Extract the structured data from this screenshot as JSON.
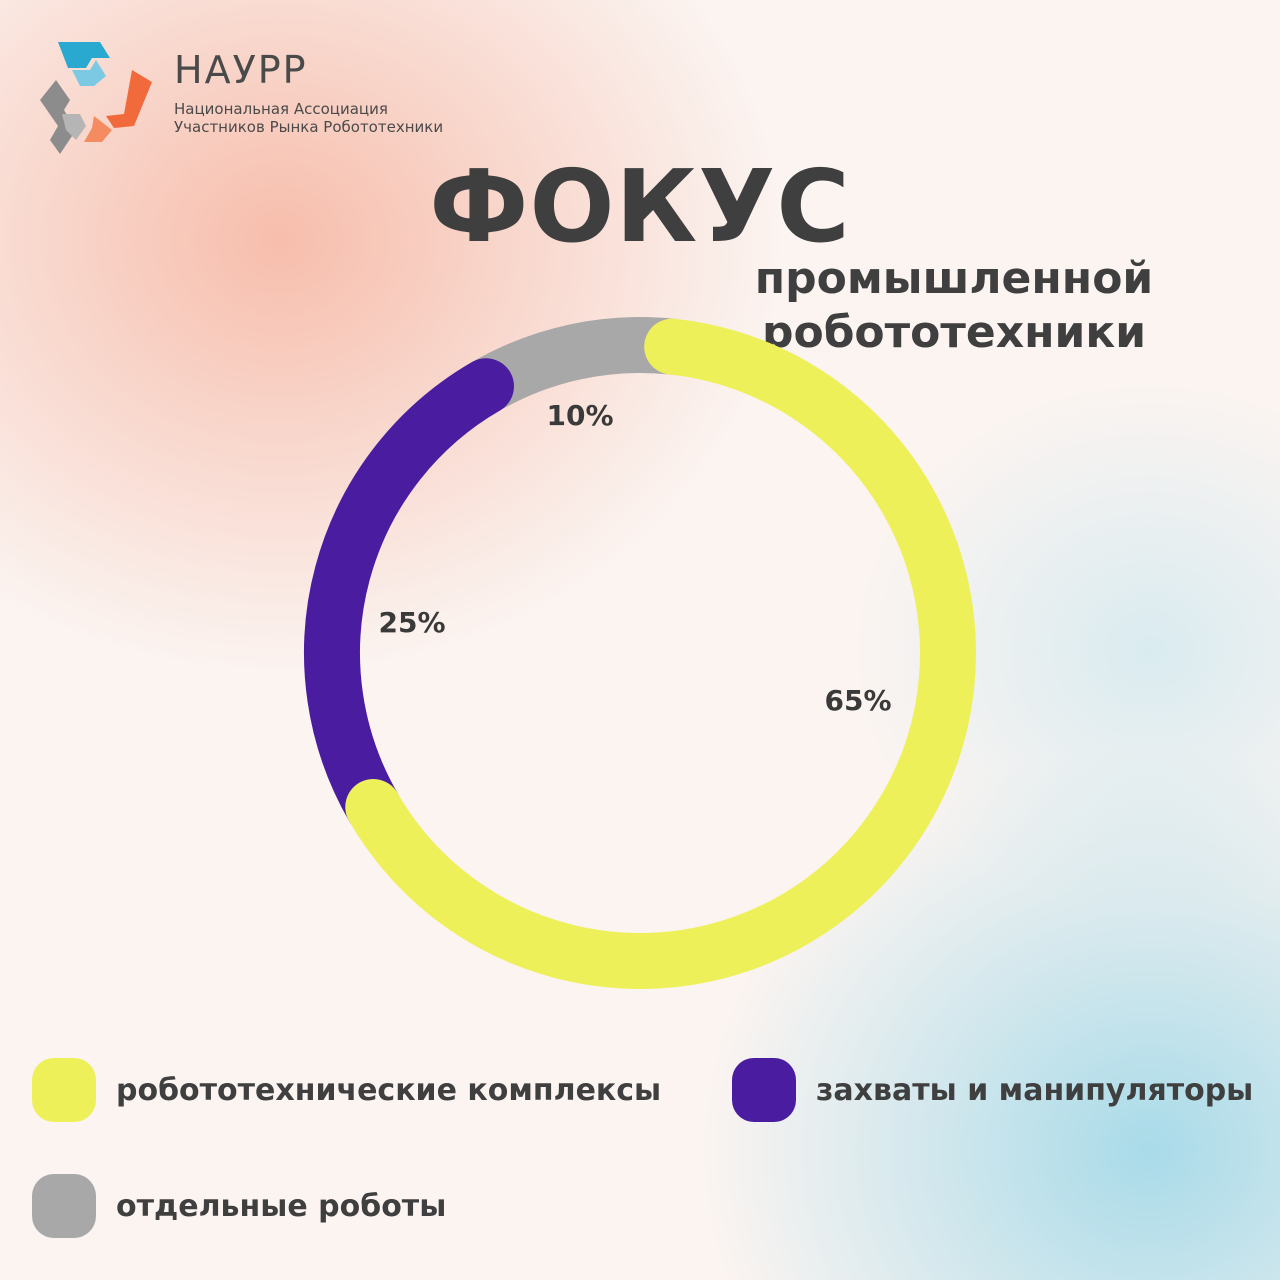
{
  "header": {
    "org_name": "НАУРР",
    "org_desc_line1": "Национальная Ассоциация",
    "org_desc_line2": "Участников Рынка Робототехники",
    "logo_icon": "hexagon-arrows-logo-icon",
    "logo_colors": {
      "blue": "#2aa9d0",
      "orange": "#f06a3c",
      "gray": "#8c8c8c"
    }
  },
  "title": "ФОКУС",
  "subtitle_line1": "промышленной",
  "subtitle_line2": "робототехники",
  "chart_data": {
    "type": "pie",
    "style": "donut",
    "title": "ФОКУС",
    "subtitle": "промышленной робототехники",
    "legend_placement": "bottom",
    "series": [
      {
        "name": "робототехнические комплексы",
        "value": 65,
        "label": "65%",
        "color": "#eef05a"
      },
      {
        "name": "захваты и манипуляторы",
        "value": 25,
        "label": "25%",
        "color": "#4a1ca0"
      },
      {
        "name": "отдельные роботы",
        "value": 10,
        "label": "10%",
        "color": "#a8a8a8"
      }
    ]
  }
}
